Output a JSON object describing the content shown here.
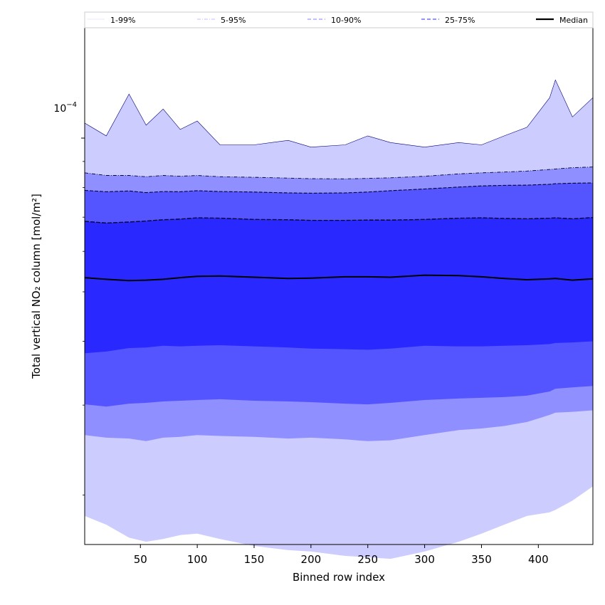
{
  "chart_data": {
    "type": "area",
    "title": "",
    "xlabel": "Binned row index",
    "ylabel": "Total vertical NO₂ column [mol/m²]",
    "xlim": [
      1,
      448
    ],
    "ylim": [
      1.6e-05,
      0.000165
    ],
    "yscale": "log",
    "grid": false,
    "legend_position": "top",
    "x_ticks": [
      50,
      100,
      150,
      200,
      250,
      300,
      350,
      400
    ],
    "y_major_tick_label": {
      "base": "10",
      "exponent": "−4"
    },
    "y_major_tick_value": 0.0001,
    "y_minor_ticks": [
      2e-05,
      3e-05,
      4e-05,
      5e-05,
      6e-05,
      7e-05,
      8e-05,
      9e-05
    ],
    "legend": [
      {
        "label": "1-99%",
        "color": "#eeeeff",
        "style": "solid"
      },
      {
        "label": "5-95%",
        "color": "#ccccff",
        "style": "dashdot"
      },
      {
        "label": "10-90%",
        "color": "#9999ff",
        "style": "dashed"
      },
      {
        "label": "25-75%",
        "color": "#5555ff",
        "style": "dashed"
      },
      {
        "label": "Median",
        "color": "#000000",
        "style": "solid"
      }
    ],
    "band_colors": {
      "p1_99": "#ccccff",
      "p5_95": "#8f8fff",
      "p10_90": "#5555ff",
      "p25_75": "#2828ff"
    },
    "x": [
      1,
      20,
      40,
      55,
      70,
      85,
      100,
      120,
      150,
      180,
      200,
      230,
      250,
      270,
      300,
      330,
      350,
      370,
      390,
      410,
      415,
      430,
      448
    ],
    "series": [
      {
        "name": "p1",
        "values": [
          1.82e-05,
          1.75e-05,
          1.65e-05,
          1.62e-05,
          1.64e-05,
          1.67e-05,
          1.68e-05,
          1.64e-05,
          1.59e-05,
          1.56e-05,
          1.55e-05,
          1.52e-05,
          1.51e-05,
          1.5e-05,
          1.55e-05,
          1.62e-05,
          1.68e-05,
          1.75e-05,
          1.82e-05,
          1.85e-05,
          1.87e-05,
          1.95e-05,
          2.08e-05
        ]
      },
      {
        "name": "p99",
        "values": [
          0.000107,
          0.000101,
          0.000122,
          0.000106,
          0.000114,
          0.000104,
          0.000108,
          9.7e-05,
          9.7e-05,
          9.9e-05,
          9.6e-05,
          9.7e-05,
          0.000101,
          9.8e-05,
          9.6e-05,
          9.8e-05,
          9.7e-05,
          0.000101,
          0.000105,
          0.00012,
          0.00013,
          0.00011,
          0.00012
        ]
      },
      {
        "name": "p5",
        "values": [
          2.62e-05,
          2.59e-05,
          2.58e-05,
          2.55e-05,
          2.59e-05,
          2.6e-05,
          2.62e-05,
          2.61e-05,
          2.6e-05,
          2.58e-05,
          2.59e-05,
          2.57e-05,
          2.55e-05,
          2.56e-05,
          2.62e-05,
          2.68e-05,
          2.7e-05,
          2.73e-05,
          2.78e-05,
          2.87e-05,
          2.9e-05,
          2.91e-05,
          2.93e-05
        ]
      },
      {
        "name": "p95",
        "values": [
          8.55e-05,
          8.45e-05,
          8.45e-05,
          8.4e-05,
          8.45e-05,
          8.42e-05,
          8.45e-05,
          8.4e-05,
          8.38e-05,
          8.35e-05,
          8.33e-05,
          8.32e-05,
          8.34e-05,
          8.36e-05,
          8.42e-05,
          8.51e-05,
          8.55e-05,
          8.58e-05,
          8.62e-05,
          8.68e-05,
          8.7e-05,
          8.75e-05,
          8.78e-05
        ]
      },
      {
        "name": "p10",
        "values": [
          3.01e-05,
          2.98e-05,
          3.02e-05,
          3.03e-05,
          3.05e-05,
          3.06e-05,
          3.07e-05,
          3.08e-05,
          3.06e-05,
          3.05e-05,
          3.04e-05,
          3.02e-05,
          3.01e-05,
          3.03e-05,
          3.07e-05,
          3.09e-05,
          3.1e-05,
          3.11e-05,
          3.13e-05,
          3.19e-05,
          3.23e-05,
          3.25e-05,
          3.27e-05
        ]
      },
      {
        "name": "p90",
        "values": [
          7.9e-05,
          7.85e-05,
          7.88e-05,
          7.82e-05,
          7.86e-05,
          7.85e-05,
          7.89e-05,
          7.86e-05,
          7.84e-05,
          7.81e-05,
          7.8e-05,
          7.81e-05,
          7.84e-05,
          7.89e-05,
          7.95e-05,
          8.02e-05,
          8.06e-05,
          8.08e-05,
          8.09e-05,
          8.12e-05,
          8.14e-05,
          8.16e-05,
          8.17e-05
        ]
      },
      {
        "name": "p25",
        "values": [
          3.79e-05,
          3.82e-05,
          3.88e-05,
          3.89e-05,
          3.92e-05,
          3.91e-05,
          3.92e-05,
          3.93e-05,
          3.91e-05,
          3.89e-05,
          3.87e-05,
          3.86e-05,
          3.85e-05,
          3.87e-05,
          3.92e-05,
          3.91e-05,
          3.91e-05,
          3.92e-05,
          3.93e-05,
          3.95e-05,
          3.97e-05,
          3.98e-05,
          4e-05
        ]
      },
      {
        "name": "p75",
        "values": [
          6.87e-05,
          6.82e-05,
          6.85e-05,
          6.88e-05,
          6.92e-05,
          6.94e-05,
          6.98e-05,
          6.97e-05,
          6.93e-05,
          6.92e-05,
          6.9e-05,
          6.9e-05,
          6.91e-05,
          6.91e-05,
          6.93e-05,
          6.97e-05,
          6.98e-05,
          6.96e-05,
          6.95e-05,
          6.97e-05,
          6.98e-05,
          6.95e-05,
          6.99e-05
        ]
      },
      {
        "name": "median",
        "values": [
          5.33e-05,
          5.29e-05,
          5.26e-05,
          5.27e-05,
          5.29e-05,
          5.33e-05,
          5.36e-05,
          5.37e-05,
          5.34e-05,
          5.31e-05,
          5.32e-05,
          5.35e-05,
          5.35e-05,
          5.34e-05,
          5.39e-05,
          5.38e-05,
          5.35e-05,
          5.31e-05,
          5.28e-05,
          5.3e-05,
          5.31e-05,
          5.27e-05,
          5.3e-05
        ]
      }
    ]
  }
}
